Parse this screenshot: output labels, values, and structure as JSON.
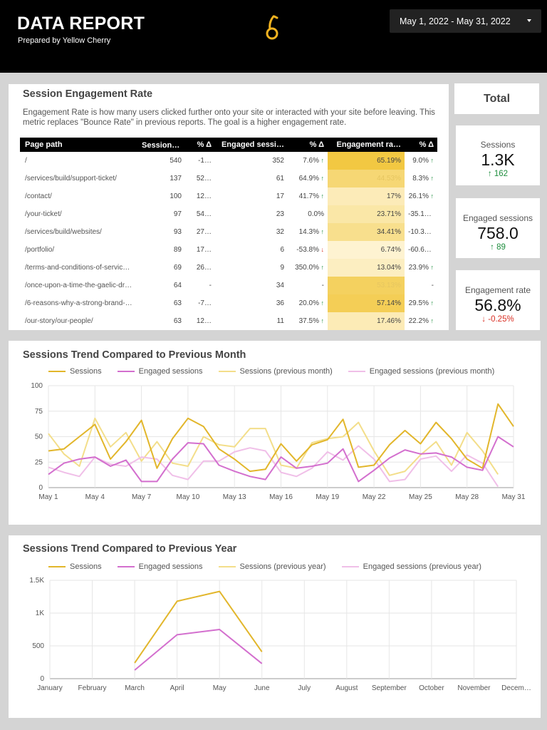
{
  "header": {
    "title": "DATA REPORT",
    "subtitle": "Prepared by Yellow Cherry",
    "logo_icon": "cherry-logo",
    "date_range": "May 1, 2022 - May 31, 2022"
  },
  "engagement": {
    "title": "Session Engagement Rate",
    "description": "Engagement Rate is how many users clicked further onto your site or interacted with your site before leaving. This metric replaces \"Bounce Rate\" in previous reports. The goal is a higher engagement rate.",
    "columns": [
      "Page path",
      "Sessions ▾",
      "% Δ",
      "Engaged sessi…",
      "% Δ",
      "Engagement ra…",
      "% Δ"
    ],
    "rows": [
      {
        "path": "/",
        "sessions": "540",
        "s_delta": "-1…",
        "engaged": "352",
        "e_delta": "7.6%",
        "e_dir": "up",
        "rate": "65.19%",
        "rate_val": 65.19,
        "r_delta": "9.0%",
        "r_dir": "up"
      },
      {
        "path": "/services/build/support-ticket/",
        "sessions": "137",
        "s_delta": "52…",
        "engaged": "61",
        "e_delta": "64.9%",
        "e_dir": "up",
        "rate": "44.53%",
        "rate_val": 44.53,
        "r_delta": "8.3%",
        "r_dir": "up"
      },
      {
        "path": "/contact/",
        "sessions": "100",
        "s_delta": "12…",
        "engaged": "17",
        "e_delta": "41.7%",
        "e_dir": "up",
        "rate": "17%",
        "rate_val": 17,
        "r_delta": "26.1%",
        "r_dir": "up"
      },
      {
        "path": "/your-ticket/",
        "sessions": "97",
        "s_delta": "54…",
        "engaged": "23",
        "e_delta": "0.0%",
        "e_dir": "",
        "rate": "23.71%",
        "rate_val": 23.71,
        "r_delta": "-35.1%",
        "r_dir": "down"
      },
      {
        "path": "/services/build/websites/",
        "sessions": "93",
        "s_delta": "27…",
        "engaged": "32",
        "e_delta": "14.3%",
        "e_dir": "up",
        "rate": "34.41%",
        "rate_val": 34.41,
        "r_delta": "-10.3%",
        "r_dir": "down"
      },
      {
        "path": "/portfolio/",
        "sessions": "89",
        "s_delta": "17…",
        "engaged": "6",
        "e_delta": "-53.8%",
        "e_dir": "down",
        "rate": "6.74%",
        "rate_val": 6.74,
        "r_delta": "-60.6%",
        "r_dir": "down"
      },
      {
        "path": "/terms-and-conditions-of-servic…",
        "sessions": "69",
        "s_delta": "26…",
        "engaged": "9",
        "e_delta": "350.0%",
        "e_dir": "up",
        "rate": "13.04%",
        "rate_val": 13.04,
        "r_delta": "23.9%",
        "r_dir": "up"
      },
      {
        "path": "/once-upon-a-time-the-gaelic-dr…",
        "sessions": "64",
        "s_delta": "-",
        "engaged": "34",
        "e_delta": "-",
        "e_dir": "",
        "rate": "53.13%",
        "rate_val": 53.13,
        "r_delta": "-",
        "r_dir": ""
      },
      {
        "path": "/6-reasons-why-a-strong-brand-…",
        "sessions": "63",
        "s_delta": "-7…",
        "engaged": "36",
        "e_delta": "20.0%",
        "e_dir": "up",
        "rate": "57.14%",
        "rate_val": 57.14,
        "r_delta": "29.5%",
        "r_dir": "up"
      },
      {
        "path": "/our-story/our-people/",
        "sessions": "63",
        "s_delta": "12…",
        "engaged": "11",
        "e_delta": "37.5%",
        "e_dir": "up",
        "rate": "17.46%",
        "rate_val": 17.46,
        "r_delta": "22.2%",
        "r_dir": "up"
      }
    ]
  },
  "totals": {
    "title": "Total",
    "kpis": [
      {
        "label": "Sessions",
        "value": "1.3K",
        "delta": "162",
        "dir": "up"
      },
      {
        "label": "Engaged sessions",
        "value": "758.0",
        "delta": "89",
        "dir": "up"
      },
      {
        "label": "Engagement rate",
        "value": "56.8%",
        "delta": "-0.25%",
        "dir": "down"
      }
    ]
  },
  "colors": {
    "sessions": "#e2b62b",
    "engaged": "#d36fce",
    "sessions_prev": "#f3de8a",
    "engaged_prev": "#f0bfe8",
    "up": "#1e8e3e",
    "down": "#d93025"
  },
  "chart_data": [
    {
      "type": "line",
      "title": "Sessions Trend Compared to Previous Month",
      "categories": [
        "May 1",
        "May 2",
        "May 3",
        "May 4",
        "May 5",
        "May 6",
        "May 7",
        "May 8",
        "May 9",
        "May 10",
        "May 11",
        "May 12",
        "May 13",
        "May 14",
        "May 15",
        "May 16",
        "May 17",
        "May 18",
        "May 19",
        "May 20",
        "May 21",
        "May 22",
        "May 23",
        "May 24",
        "May 25",
        "May 26",
        "May 27",
        "May 28",
        "May 29",
        "May 30",
        "May 31"
      ],
      "tick_labels": [
        "May 1",
        "May 4",
        "May 7",
        "May 10",
        "May 13",
        "May 16",
        "May 19",
        "May 22",
        "May 25",
        "May 28",
        "May 31"
      ],
      "ylim": [
        0,
        100
      ],
      "yticks": [
        0,
        25,
        50,
        75,
        100
      ],
      "grid": true,
      "legend": "top",
      "series": [
        {
          "name": "Sessions",
          "values": [
            36,
            38,
            50,
            62,
            28,
            45,
            66,
            19,
            48,
            68,
            60,
            38,
            28,
            16,
            18,
            43,
            26,
            42,
            47,
            67,
            20,
            22,
            42,
            56,
            43,
            64,
            48,
            28,
            19,
            82,
            60
          ]
        },
        {
          "name": "Engaged sessions",
          "values": [
            13,
            24,
            28,
            30,
            21,
            27,
            6,
            6,
            28,
            44,
            43,
            22,
            16,
            11,
            8,
            30,
            19,
            21,
            24,
            38,
            6,
            17,
            29,
            37,
            33,
            34,
            30,
            20,
            17,
            50,
            40
          ]
        },
        {
          "name": "Sessions (previous month)",
          "values": [
            53,
            33,
            21,
            68,
            40,
            54,
            26,
            45,
            24,
            21,
            50,
            42,
            40,
            58,
            58,
            22,
            19,
            44,
            48,
            50,
            64,
            36,
            12,
            16,
            32,
            45,
            22,
            54,
            36,
            13,
            null
          ]
        },
        {
          "name": "Engaged sessions (previous month)",
          "values": [
            20,
            15,
            11,
            30,
            23,
            21,
            30,
            28,
            12,
            8,
            26,
            26,
            35,
            39,
            36,
            15,
            11,
            19,
            35,
            27,
            41,
            28,
            6,
            8,
            28,
            31,
            16,
            32,
            24,
            1,
            null
          ]
        }
      ]
    },
    {
      "type": "line",
      "title": "Sessions Trend Compared to Previous Year",
      "categories": [
        "January",
        "February",
        "March",
        "April",
        "May",
        "June",
        "July",
        "August",
        "September",
        "October",
        "November",
        "Decem…"
      ],
      "ylim": [
        0,
        1500
      ],
      "yticks": [
        0,
        500,
        1000,
        1500
      ],
      "ytick_labels": [
        "0",
        "500",
        "1K",
        "1.5K"
      ],
      "grid": true,
      "legend": "top",
      "series": [
        {
          "name": "Sessions",
          "values": [
            null,
            null,
            240,
            1180,
            1330,
            410,
            null,
            null,
            null,
            null,
            null,
            null
          ]
        },
        {
          "name": "Engaged sessions",
          "values": [
            null,
            null,
            130,
            670,
            750,
            230,
            null,
            null,
            null,
            null,
            null,
            null
          ]
        },
        {
          "name": "Sessions (previous year)",
          "values": [
            null,
            null,
            null,
            null,
            null,
            null,
            null,
            null,
            null,
            null,
            null,
            null
          ]
        },
        {
          "name": "Engaged sessions (previous year)",
          "values": [
            null,
            null,
            null,
            null,
            null,
            null,
            null,
            null,
            null,
            null,
            null,
            null
          ]
        }
      ]
    }
  ]
}
